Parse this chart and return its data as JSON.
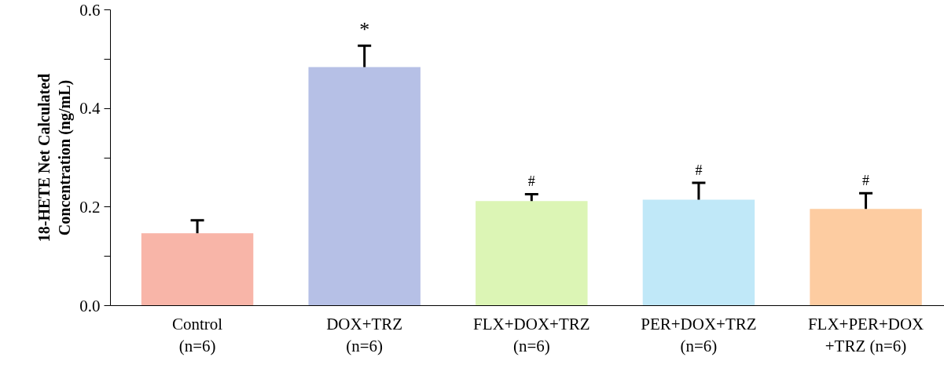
{
  "chart_data": {
    "type": "bar",
    "ylabel": "18-HETE Net Calculated\nConcentration (ng/mL)",
    "categories": [
      "Control\n(n=6)",
      "DOX+TRZ\n(n=6)",
      "FLX+DOX+TRZ\n(n=6)",
      "PER+DOX+TRZ\n(n=6)",
      "FLX+PER+DOX\n+TRZ (n=6)"
    ],
    "values": [
      0.147,
      0.484,
      0.212,
      0.215,
      0.196
    ],
    "colors": [
      "#f8b5a8",
      "#b6c0e6",
      "#dcf5b5",
      "#c0e8f8",
      "#fdcca1"
    ],
    "errors": [
      [
        0.147,
        0.173
      ],
      [
        0.484,
        0.527
      ],
      [
        0.212,
        0.226
      ],
      [
        0.215,
        0.249
      ],
      [
        0.196,
        0.228
      ]
    ],
    "annotations": [
      {
        "text": "*",
        "x": "DOX+TRZ\n(n=6)",
        "y": 0.527
      },
      {
        "text": "#",
        "x": "FLX+DOX+TRZ\n(n=6)",
        "y": 0.226
      },
      {
        "text": "#",
        "x": "PER+DOX+TRZ\n(n=6)",
        "y": 0.249
      },
      {
        "text": "#",
        "x": "FLX+PER+DOX\n+TRZ (n=6)",
        "y": 0.228
      }
    ],
    "ylim": [
      0,
      0.6
    ],
    "yticks": [
      {
        "value": 0,
        "label": "0.0"
      },
      {
        "value": 0.1,
        "label": null
      },
      {
        "value": 0.2,
        "label": "0.2"
      },
      {
        "value": 0.3,
        "label": null
      },
      {
        "value": 0.4,
        "label": "0.4"
      },
      {
        "value": 0.5,
        "label": null
      },
      {
        "value": 0.6,
        "label": "0.6"
      }
    ],
    "grid": false
  }
}
